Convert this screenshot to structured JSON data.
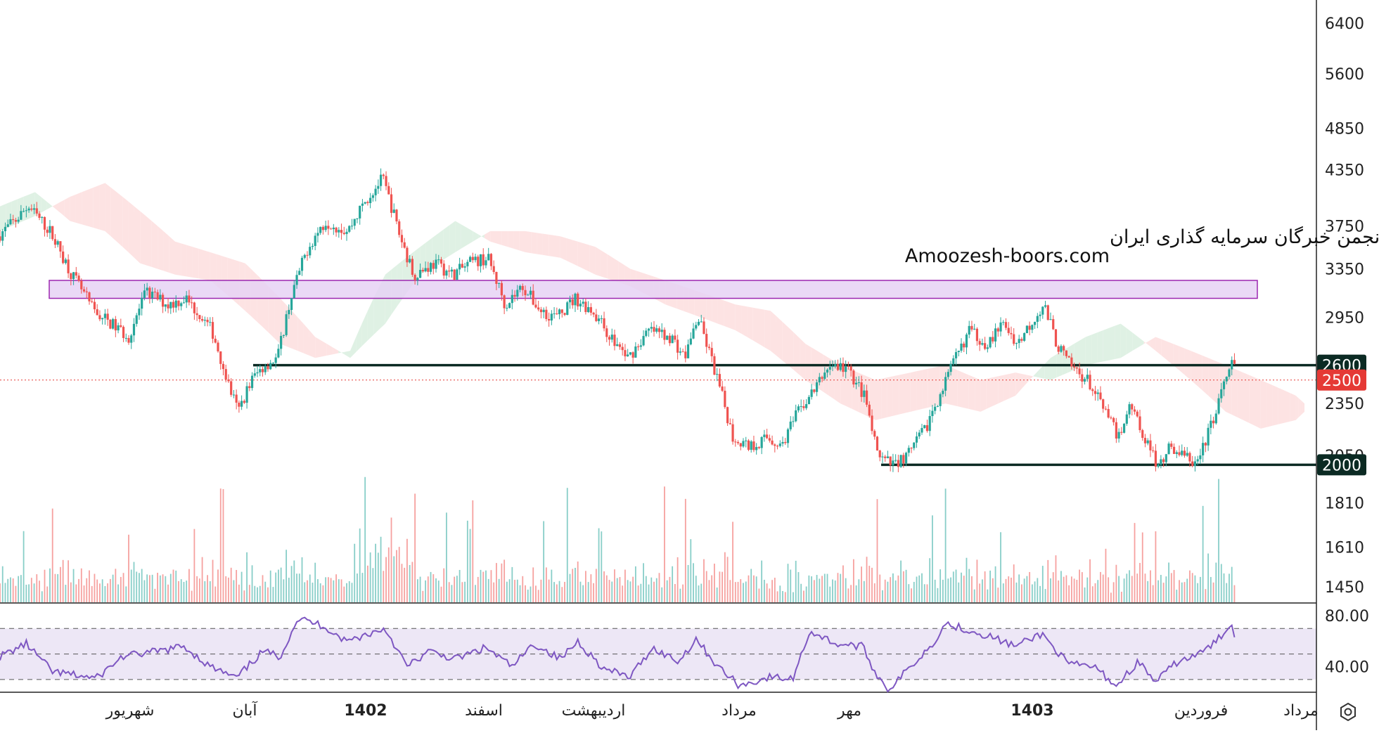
{
  "watermark": {
    "line1": "انجمن خبرگان سرمایه گذاری ایران",
    "line2": "Amoozesh-boors.com"
  },
  "colors": {
    "up": "#26a69a",
    "down": "#ef5350",
    "cloud_bull": "#dff1e4",
    "cloud_bear": "#fde3e3",
    "zone_fill": "#e6d2f5",
    "zone_stroke": "#9c27b0",
    "level_line": "#0b2a23",
    "level_badge": "#0b2a23",
    "current_badge": "#e53935",
    "rsi_line": "#7e57c2",
    "rsi_band": "#ede7f6"
  },
  "icons": {
    "settings": "settings-gear-icon"
  },
  "chart_data": [
    {
      "type": "candlestick",
      "title": "",
      "y_scale": "log",
      "ylim": [
        1390,
        6800
      ],
      "y_ticks": [
        6400,
        5600,
        4850,
        4350,
        3750,
        3350,
        2950,
        2350,
        2050,
        1810,
        1610,
        1450
      ],
      "x_ticks": [
        {
          "label": "شهریور",
          "bold": false
        },
        {
          "label": "آبان",
          "bold": false
        },
        {
          "label": "1402",
          "bold": true
        },
        {
          "label": "اسفند",
          "bold": false
        },
        {
          "label": "اردیبهشت",
          "bold": false
        },
        {
          "label": "مرداد",
          "bold": false
        },
        {
          "label": "مهر",
          "bold": false
        },
        {
          "label": "1403",
          "bold": true
        },
        {
          "label": "فروردین",
          "bold": false
        },
        {
          "label": "مرداد",
          "bold": false
        }
      ],
      "key_levels": [
        {
          "value": 2600,
          "label": "2600"
        },
        {
          "value": 2000,
          "label": "2000"
        }
      ],
      "current_price": {
        "value": 2500,
        "label": "2500"
      },
      "resistance_zone": {
        "low": 3100,
        "high": 3250
      },
      "price_path": [
        {
          "t": 0,
          "p": 3650
        },
        {
          "t": 20,
          "p": 3800
        },
        {
          "t": 35,
          "p": 3950
        },
        {
          "t": 60,
          "p": 3700
        },
        {
          "t": 85,
          "p": 3300
        },
        {
          "t": 110,
          "p": 3000
        },
        {
          "t": 130,
          "p": 2900
        },
        {
          "t": 150,
          "p": 2800
        },
        {
          "t": 170,
          "p": 3150
        },
        {
          "t": 195,
          "p": 3050
        },
        {
          "t": 215,
          "p": 3100
        },
        {
          "t": 245,
          "p": 2850
        },
        {
          "t": 265,
          "p": 2450
        },
        {
          "t": 275,
          "p": 2300
        },
        {
          "t": 290,
          "p": 2500
        },
        {
          "t": 305,
          "p": 2600
        },
        {
          "t": 320,
          "p": 2650
        },
        {
          "t": 335,
          "p": 3100
        },
        {
          "t": 355,
          "p": 3550
        },
        {
          "t": 375,
          "p": 3800
        },
        {
          "t": 400,
          "p": 3700
        },
        {
          "t": 420,
          "p": 4000
        },
        {
          "t": 440,
          "p": 4250
        },
        {
          "t": 460,
          "p": 3650
        },
        {
          "t": 475,
          "p": 3300
        },
        {
          "t": 500,
          "p": 3400
        },
        {
          "t": 520,
          "p": 3300
        },
        {
          "t": 540,
          "p": 3400
        },
        {
          "t": 560,
          "p": 3450
        },
        {
          "t": 580,
          "p": 3050
        },
        {
          "t": 600,
          "p": 3200
        },
        {
          "t": 620,
          "p": 3000
        },
        {
          "t": 640,
          "p": 2950
        },
        {
          "t": 660,
          "p": 3100
        },
        {
          "t": 680,
          "p": 3000
        },
        {
          "t": 700,
          "p": 2800
        },
        {
          "t": 720,
          "p": 2650
        },
        {
          "t": 745,
          "p": 2850
        },
        {
          "t": 770,
          "p": 2800
        },
        {
          "t": 785,
          "p": 2650
        },
        {
          "t": 800,
          "p": 2950
        },
        {
          "t": 815,
          "p": 2650
        },
        {
          "t": 830,
          "p": 2350
        },
        {
          "t": 840,
          "p": 2150
        },
        {
          "t": 860,
          "p": 2100
        },
        {
          "t": 880,
          "p": 2150
        },
        {
          "t": 895,
          "p": 2100
        },
        {
          "t": 915,
          "p": 2300
        },
        {
          "t": 935,
          "p": 2450
        },
        {
          "t": 950,
          "p": 2600
        },
        {
          "t": 970,
          "p": 2580
        },
        {
          "t": 990,
          "p": 2400
        },
        {
          "t": 1005,
          "p": 2050
        },
        {
          "t": 1020,
          "p": 2000
        },
        {
          "t": 1040,
          "p": 2050
        },
        {
          "t": 1060,
          "p": 2200
        },
        {
          "t": 1080,
          "p": 2450
        },
        {
          "t": 1095,
          "p": 2650
        },
        {
          "t": 1110,
          "p": 2850
        },
        {
          "t": 1130,
          "p": 2750
        },
        {
          "t": 1150,
          "p": 2900
        },
        {
          "t": 1165,
          "p": 2750
        },
        {
          "t": 1180,
          "p": 2900
        },
        {
          "t": 1195,
          "p": 3050
        },
        {
          "t": 1210,
          "p": 2750
        },
        {
          "t": 1225,
          "p": 2600
        },
        {
          "t": 1245,
          "p": 2500
        },
        {
          "t": 1265,
          "p": 2300
        },
        {
          "t": 1280,
          "p": 2150
        },
        {
          "t": 1295,
          "p": 2350
        },
        {
          "t": 1310,
          "p": 2150
        },
        {
          "t": 1325,
          "p": 2000
        },
        {
          "t": 1340,
          "p": 2100
        },
        {
          "t": 1355,
          "p": 2050
        },
        {
          "t": 1370,
          "p": 2000
        },
        {
          "t": 1385,
          "p": 2200
        },
        {
          "t": 1400,
          "p": 2450
        },
        {
          "t": 1410,
          "p": 2600
        }
      ],
      "cloud": [
        {
          "t": 0,
          "a": 3950,
          "b": 3700
        },
        {
          "t": 40,
          "a": 4100,
          "b": 3850
        },
        {
          "t": 80,
          "a": 3800,
          "b": 4050
        },
        {
          "t": 120,
          "a": 3700,
          "b": 4200
        },
        {
          "t": 160,
          "a": 3400,
          "b": 3900
        },
        {
          "t": 200,
          "a": 3300,
          "b": 3600
        },
        {
          "t": 240,
          "a": 3250,
          "b": 3500
        },
        {
          "t": 280,
          "a": 3000,
          "b": 3400
        },
        {
          "t": 320,
          "a": 2750,
          "b": 3100
        },
        {
          "t": 360,
          "a": 2650,
          "b": 2800
        },
        {
          "t": 400,
          "a": 2700,
          "b": 2650
        },
        {
          "t": 440,
          "a": 3300,
          "b": 2900
        },
        {
          "t": 480,
          "a": 3550,
          "b": 3300
        },
        {
          "t": 520,
          "a": 3800,
          "b": 3500
        },
        {
          "t": 560,
          "a": 3600,
          "b": 3700
        },
        {
          "t": 600,
          "a": 3500,
          "b": 3700
        },
        {
          "t": 640,
          "a": 3450,
          "b": 3650
        },
        {
          "t": 680,
          "a": 3300,
          "b": 3550
        },
        {
          "t": 720,
          "a": 3200,
          "b": 3350
        },
        {
          "t": 760,
          "a": 3050,
          "b": 3250
        },
        {
          "t": 800,
          "a": 2950,
          "b": 3150
        },
        {
          "t": 840,
          "a": 2850,
          "b": 3050
        },
        {
          "t": 880,
          "a": 2700,
          "b": 3000
        },
        {
          "t": 920,
          "a": 2500,
          "b": 2750
        },
        {
          "t": 960,
          "a": 2350,
          "b": 2600
        },
        {
          "t": 1000,
          "a": 2250,
          "b": 2500
        },
        {
          "t": 1040,
          "a": 2300,
          "b": 2550
        },
        {
          "t": 1080,
          "a": 2350,
          "b": 2600
        },
        {
          "t": 1120,
          "a": 2300,
          "b": 2500
        },
        {
          "t": 1160,
          "a": 2400,
          "b": 2550
        },
        {
          "t": 1200,
          "a": 2650,
          "b": 2500
        },
        {
          "t": 1240,
          "a": 2800,
          "b": 2600
        },
        {
          "t": 1280,
          "a": 2900,
          "b": 2650
        },
        {
          "t": 1320,
          "a": 2700,
          "b": 2800
        },
        {
          "t": 1360,
          "a": 2500,
          "b": 2700
        },
        {
          "t": 1400,
          "a": 2300,
          "b": 2600
        },
        {
          "t": 1440,
          "a": 2200,
          "b": 2500
        },
        {
          "t": 1480,
          "a": 2250,
          "b": 2400
        },
        {
          "t": 1490,
          "a": 2300,
          "b": 2350
        }
      ]
    },
    {
      "type": "line",
      "title": "",
      "ylim": [
        20,
        90
      ],
      "y_ticks": [
        80.0,
        40.0
      ],
      "band": [
        30,
        70
      ],
      "midline": 50,
      "values_path": [
        {
          "t": 0,
          "v": 48
        },
        {
          "t": 30,
          "v": 58
        },
        {
          "t": 60,
          "v": 36
        },
        {
          "t": 110,
          "v": 31
        },
        {
          "t": 140,
          "v": 48
        },
        {
          "t": 180,
          "v": 52
        },
        {
          "t": 210,
          "v": 56
        },
        {
          "t": 240,
          "v": 40
        },
        {
          "t": 270,
          "v": 31
        },
        {
          "t": 300,
          "v": 52
        },
        {
          "t": 320,
          "v": 48
        },
        {
          "t": 340,
          "v": 78
        },
        {
          "t": 370,
          "v": 72
        },
        {
          "t": 395,
          "v": 60
        },
        {
          "t": 440,
          "v": 70
        },
        {
          "t": 465,
          "v": 40
        },
        {
          "t": 490,
          "v": 52
        },
        {
          "t": 520,
          "v": 46
        },
        {
          "t": 555,
          "v": 55
        },
        {
          "t": 585,
          "v": 40
        },
        {
          "t": 610,
          "v": 58
        },
        {
          "t": 640,
          "v": 46
        },
        {
          "t": 660,
          "v": 60
        },
        {
          "t": 690,
          "v": 38
        },
        {
          "t": 720,
          "v": 32
        },
        {
          "t": 745,
          "v": 55
        },
        {
          "t": 775,
          "v": 44
        },
        {
          "t": 795,
          "v": 62
        },
        {
          "t": 820,
          "v": 40
        },
        {
          "t": 845,
          "v": 25
        },
        {
          "t": 880,
          "v": 32
        },
        {
          "t": 905,
          "v": 30
        },
        {
          "t": 925,
          "v": 68
        },
        {
          "t": 955,
          "v": 58
        },
        {
          "t": 985,
          "v": 56
        },
        {
          "t": 1000,
          "v": 35
        },
        {
          "t": 1015,
          "v": 22
        },
        {
          "t": 1040,
          "v": 40
        },
        {
          "t": 1065,
          "v": 58
        },
        {
          "t": 1080,
          "v": 74
        },
        {
          "t": 1100,
          "v": 70
        },
        {
          "t": 1130,
          "v": 64
        },
        {
          "t": 1160,
          "v": 56
        },
        {
          "t": 1190,
          "v": 66
        },
        {
          "t": 1220,
          "v": 42
        },
        {
          "t": 1250,
          "v": 40
        },
        {
          "t": 1275,
          "v": 25
        },
        {
          "t": 1300,
          "v": 44
        },
        {
          "t": 1320,
          "v": 28
        },
        {
          "t": 1345,
          "v": 44
        },
        {
          "t": 1370,
          "v": 50
        },
        {
          "t": 1390,
          "v": 60
        },
        {
          "t": 1405,
          "v": 74
        },
        {
          "t": 1410,
          "v": 66
        }
      ]
    }
  ]
}
